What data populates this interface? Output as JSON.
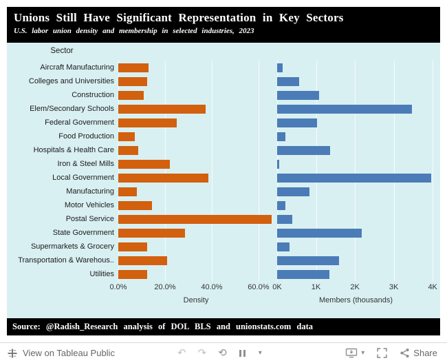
{
  "header": {
    "title": "Unions Still Have Significant Representation in Key Sectors",
    "subtitle": "U.S. labor union density and membership in selected industries, 2023"
  },
  "sector_header": "Sector",
  "chart_data": {
    "type": "bar",
    "orientation": "horizontal",
    "categories": [
      "Aircraft Manufacturing",
      "Colleges and Universities",
      "Construction",
      "Elem/Secondary Schools",
      "Federal Government",
      "Food Production",
      "Hospitals & Health Care",
      "Iron & Steel Mills",
      "Local Government",
      "Manufacturing",
      "Motor Vehicles",
      "Postal Service",
      "State Government",
      "Supermarkets & Grocery",
      "Transportation & Warehous..",
      "Utilities"
    ],
    "series": [
      {
        "name": "Density",
        "unit": "percent",
        "color": "#d2600e",
        "values": [
          13,
          12.5,
          11,
          37.5,
          25,
          7,
          8.5,
          22,
          38.5,
          8,
          14.5,
          65.5,
          28.5,
          12.5,
          21,
          12.5
        ],
        "axis": {
          "title": "Density",
          "max": 66.5,
          "ticks": [
            {
              "label": "0.0%",
              "value": 0
            },
            {
              "label": "20.0%",
              "value": 20
            },
            {
              "label": "40.0%",
              "value": 40
            },
            {
              "label": "60.0%",
              "value": 60
            }
          ]
        }
      },
      {
        "name": "Members (thousands)",
        "unit": "thousands",
        "color": "#4b7cb8",
        "values": [
          140,
          570,
          1080,
          3470,
          1030,
          210,
          1370,
          50,
          3960,
          840,
          210,
          390,
          2170,
          320,
          1600,
          1350
        ],
        "axis": {
          "title": "Members (thousands)",
          "max": 4050,
          "ticks": [
            {
              "label": "0K",
              "value": 0
            },
            {
              "label": "1K",
              "value": 1000
            },
            {
              "label": "2K",
              "value": 2000
            },
            {
              "label": "3K",
              "value": 3000
            },
            {
              "label": "4K",
              "value": 4000
            }
          ]
        }
      }
    ],
    "legend": "off",
    "grid": "on"
  },
  "footer": {
    "text": "Source: @Radish_Research analysis of DOL BLS and unionstats.com data"
  },
  "toolbar": {
    "view_label": "View on Tableau Public",
    "share_label": "Share",
    "icons": {
      "undo": "↶",
      "redo": "↷",
      "replay": "⟲",
      "caret": "▾"
    }
  },
  "colors": {
    "background": "#d9f0f2",
    "banner": "#000000",
    "bar_orange": "#d2600e",
    "bar_blue": "#4b7cb8"
  }
}
